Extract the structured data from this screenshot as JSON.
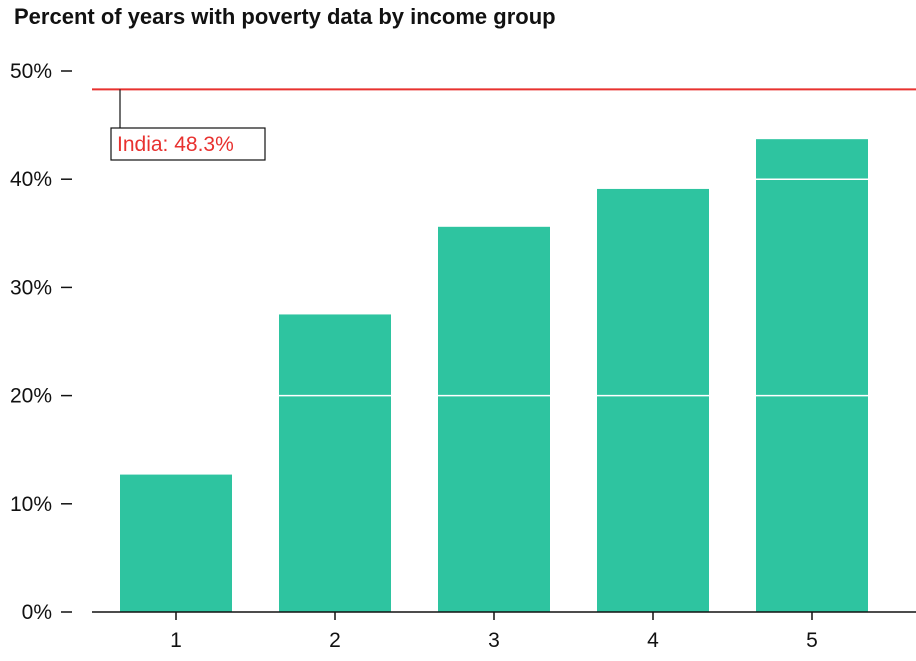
{
  "chart_data": {
    "type": "bar",
    "title": "Percent of years with poverty data by income group",
    "categories": [
      "1",
      "2",
      "3",
      "4",
      "5"
    ],
    "values": [
      12.7,
      27.5,
      35.6,
      39.1,
      43.7
    ],
    "xlabel": "",
    "ylabel": "",
    "ylim": [
      0,
      50
    ],
    "yticks": [
      0,
      10,
      20,
      30,
      40,
      50
    ],
    "ytick_labels": [
      "0%",
      "10%",
      "20%",
      "30%",
      "40%",
      "50%"
    ],
    "grid": false,
    "gridline_overlay_on_bars": [
      20,
      40
    ],
    "reference_line": {
      "value": 48.3,
      "label": "India: 48.3%",
      "color": "#e8312f"
    },
    "bar_color": "#2ec4a0"
  }
}
